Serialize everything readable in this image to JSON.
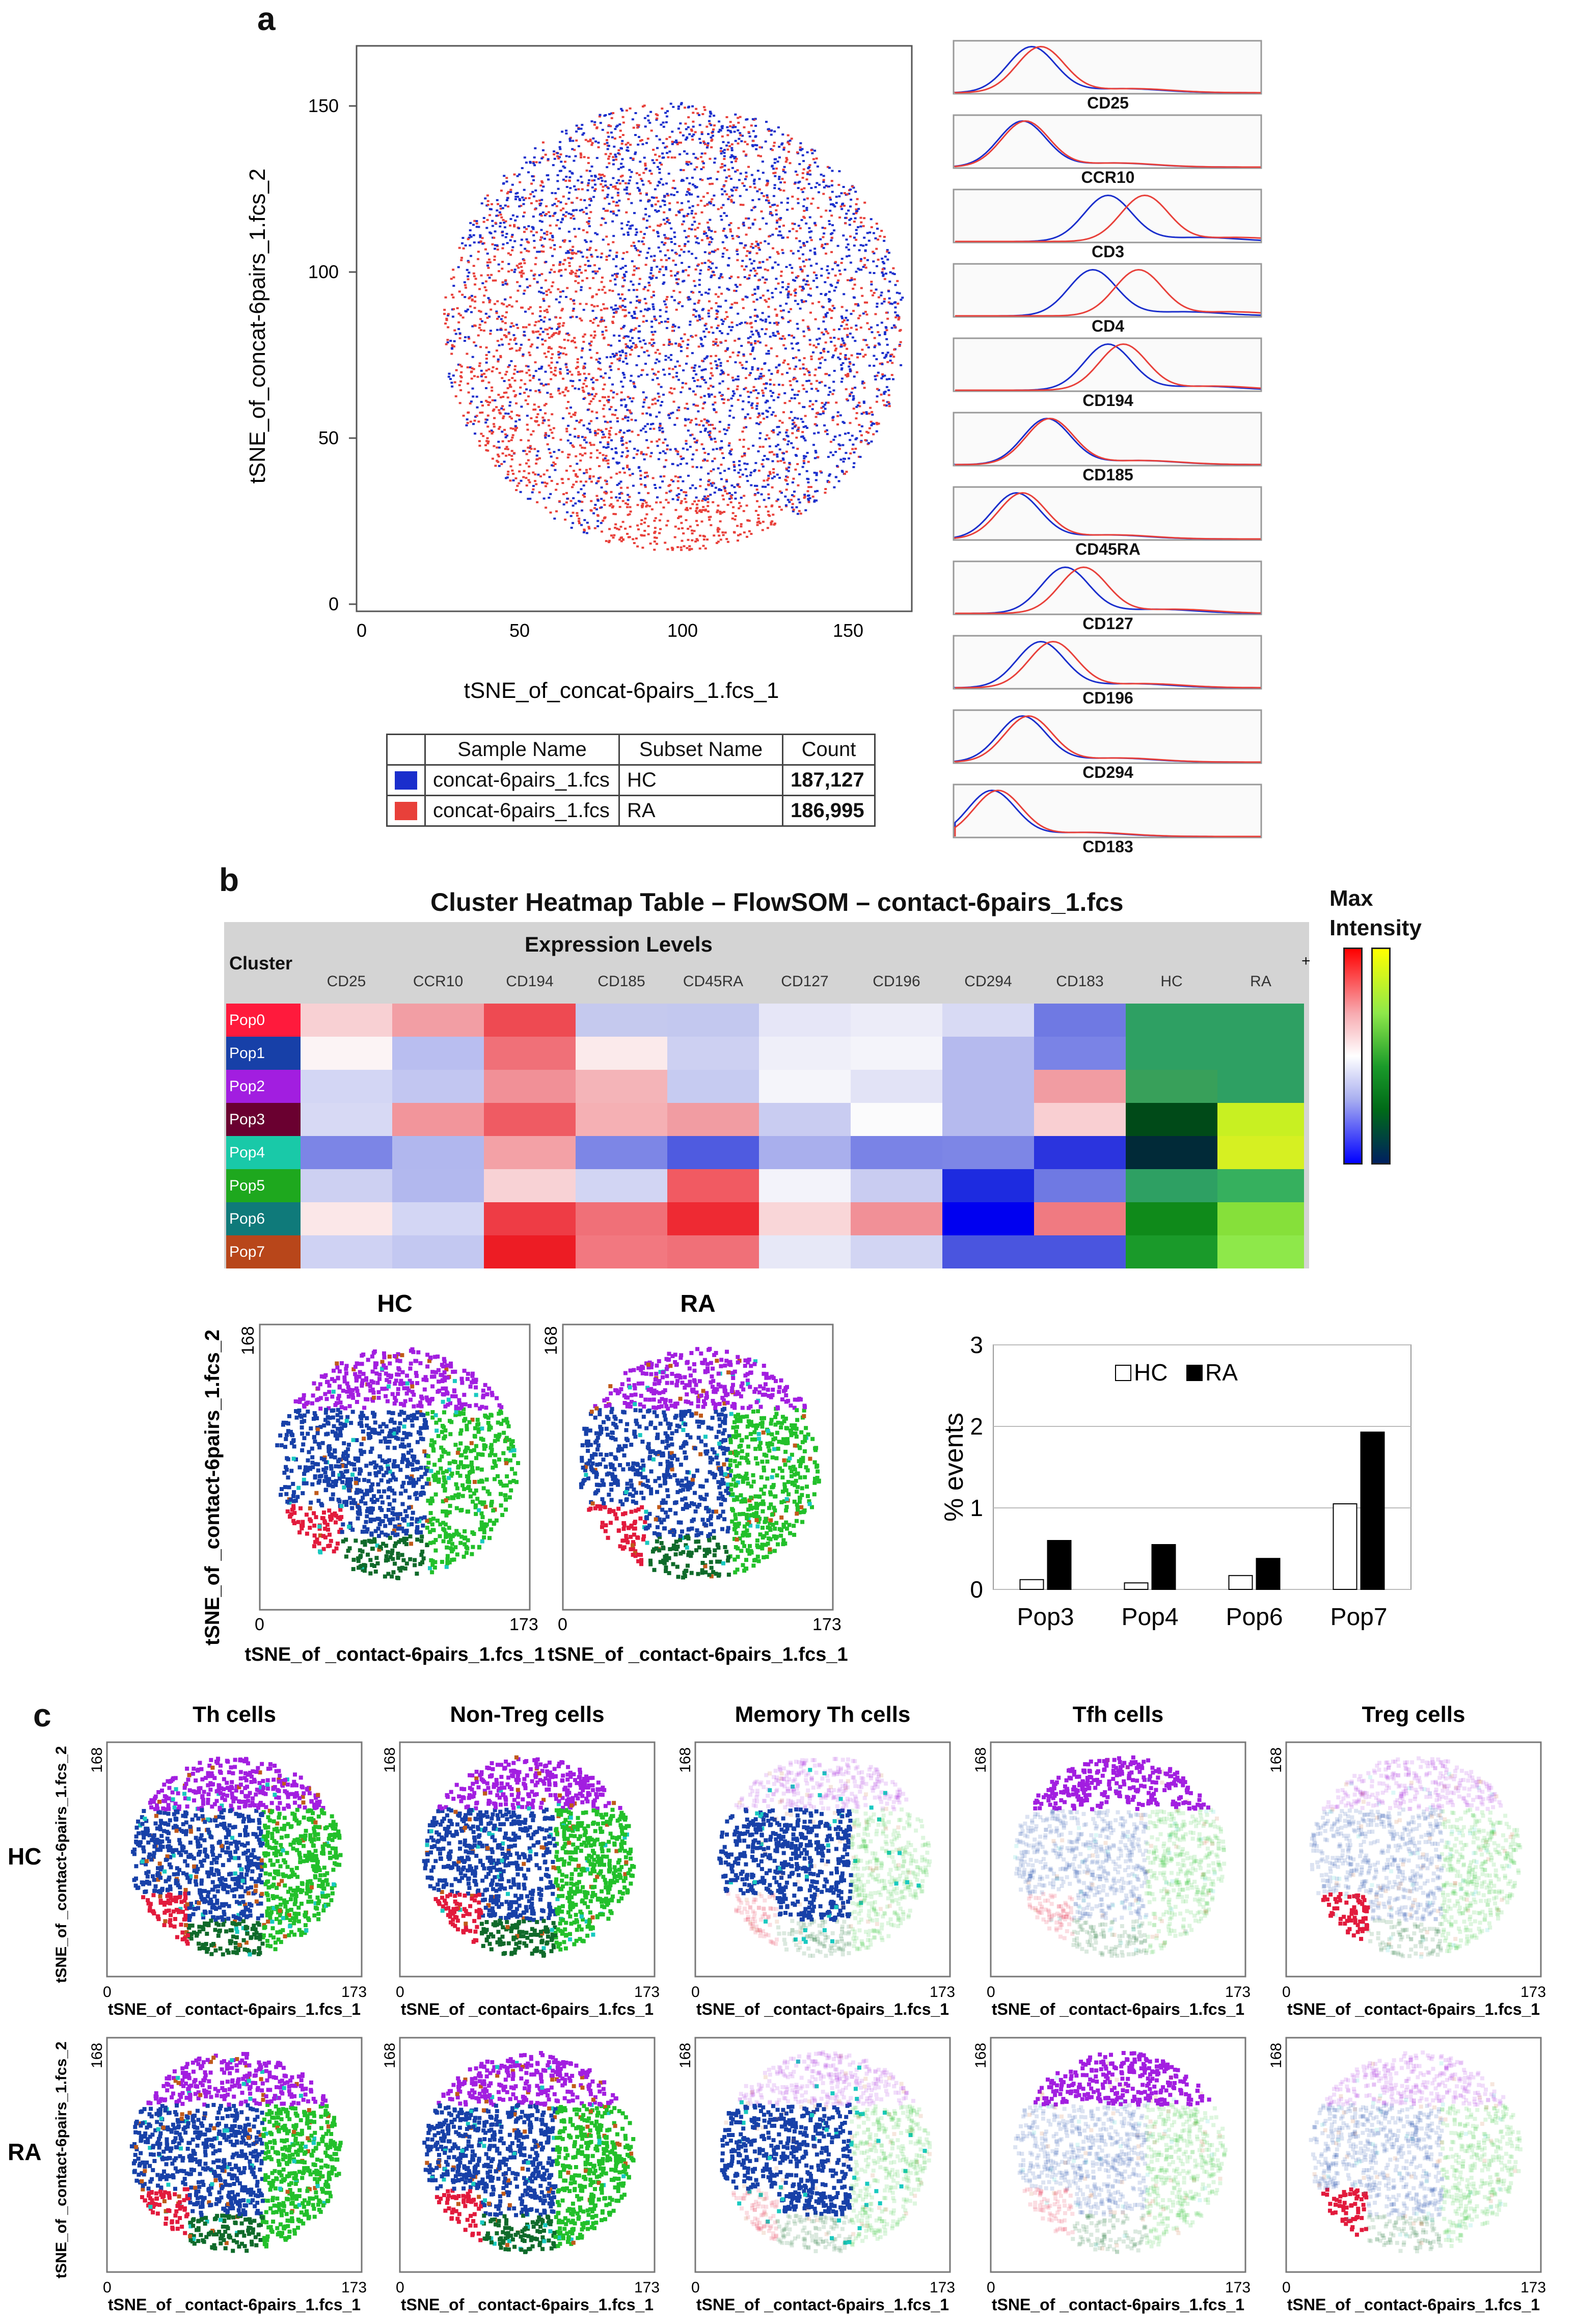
{
  "panel_a": {
    "letter": "a",
    "tsne": {
      "x_label": "tSNE_of_concat-6pairs_1.fcs_1",
      "y_label": "tSNE_of_concat-6pairs_1.fcs_2",
      "x_ticks": [
        "0",
        "50",
        "100",
        "150"
      ],
      "y_ticks": [
        "0",
        "50",
        "100",
        "150"
      ]
    },
    "legend": {
      "headers": [
        "Sample Name",
        "Subset Name",
        "Count"
      ],
      "rows": [
        {
          "color": "#1a2ecc",
          "sample": "concat-6pairs_1.fcs",
          "subset": "HC",
          "count": "187,127"
        },
        {
          "color": "#e8403a",
          "sample": "concat-6pairs_1.fcs",
          "subset": "RA",
          "count": "186,995"
        }
      ]
    },
    "histograms": [
      "CD25",
      "CCR10",
      "CD3",
      "CD4",
      "CD194",
      "CD185",
      "CD45RA",
      "CD127",
      "CD196",
      "CD294",
      "CD183"
    ]
  },
  "panel_b": {
    "letter": "b",
    "heatmap_title": "Cluster Heatmap Table – FlowSOM – contact-6pairs_1.fcs",
    "cluster_header": "Cluster",
    "expression_header": "Expression Levels",
    "plus_button": "+",
    "columns": [
      "CD25",
      "CCR10",
      "CD194",
      "CD185",
      "CD45RA",
      "CD127",
      "CD196",
      "CD294",
      "CD183",
      "HC",
      "RA"
    ],
    "rows": [
      {
        "name": "Pop0",
        "color": "#ff1a3c"
      },
      {
        "name": "Pop1",
        "color": "#1740a8"
      },
      {
        "name": "Pop2",
        "color": "#a21ee0"
      },
      {
        "name": "Pop3",
        "color": "#6a0030"
      },
      {
        "name": "Pop4",
        "color": "#19c9a8"
      },
      {
        "name": "Pop5",
        "color": "#1ea81e"
      },
      {
        "name": "Pop6",
        "color": "#0f7a7a"
      },
      {
        "name": "Pop7",
        "color": "#b8461a"
      }
    ],
    "cells": [
      [
        "#f8d0d3",
        "#f29ea4",
        "#ee4a52",
        "#c5c9ee",
        "#c3c8ef",
        "#e6e6f7",
        "#ececf8",
        "#d8daf4",
        "#6f79e3",
        "#2ea063",
        "#2ea063"
      ],
      [
        "#fcf4f5",
        "#b9bef0",
        "#f07078",
        "#fbeaeb",
        "#cdd0f2",
        "#efeff9",
        "#f4f4fa",
        "#b5baee",
        "#7a83e6",
        "#2ea063",
        "#2ea063"
      ],
      [
        "#d3d6f4",
        "#c2c6f1",
        "#f19097",
        "#f4b4b8",
        "#c6cbf1",
        "#f5f5fa",
        "#e2e3f6",
        "#b5baee",
        "#f19ca2",
        "#38a05a",
        "#2ea063"
      ],
      [
        "#d7d9f4",
        "#f2959b",
        "#ef5b63",
        "#f5b0b4",
        "#f19ca2",
        "#c9ccf1",
        "#fbfbfc",
        "#b5baee",
        "#f9cfd2",
        "#004a18",
        "#c8f022"
      ],
      [
        "#7c85e6",
        "#b1b7ee",
        "#f3a1a6",
        "#7d86e6",
        "#4f5be0",
        "#a9afed",
        "#7a83e6",
        "#7d86e6",
        "#2b34de",
        "#012a38",
        "#d6f022"
      ],
      [
        "#cdd0f2",
        "#b2b8ee",
        "#f8d2d5",
        "#d2d5f3",
        "#f15a62",
        "#f3f3fa",
        "#c9ccf1",
        "#1d2be0",
        "#6f79e3",
        "#2ea063",
        "#36b05e"
      ],
      [
        "#fbe7e8",
        "#d3d6f4",
        "#ee3c45",
        "#f07078",
        "#ee2a33",
        "#f9d6d8",
        "#f19097",
        "#0000f0",
        "#f07a81",
        "#0f8a1a",
        "#86e03a"
      ],
      [
        "#cfd2f3",
        "#c3c8f1",
        "#ed1c24",
        "#f27880",
        "#f07078",
        "#e7e8f7",
        "#d2d5f3",
        "#4a55df",
        "#4a55df",
        "#1a9a2a",
        "#8ee84a"
      ]
    ],
    "colorbar_label": [
      "Max",
      "Intensity"
    ],
    "tsne_hc_title": "HC",
    "tsne_ra_title": "RA",
    "tsne_x_label": "tSNE_of _contact-6pairs_1.fcs_1",
    "tsne_y_label": "tSNE_of _contact-6pairs_1.fcs_2",
    "tsne_ticks": {
      "x0": "0",
      "xmax": "173",
      "y0": "0",
      "ymax": "168"
    }
  },
  "chart_data": {
    "type": "bar",
    "categories": [
      "Pop3",
      "Pop4",
      "Pop6",
      "Pop7"
    ],
    "series": [
      {
        "name": "HC",
        "values": [
          0.12,
          0.08,
          0.17,
          1.05
        ],
        "color": "#ffffff"
      },
      {
        "name": "RA",
        "values": [
          0.6,
          0.55,
          0.38,
          1.93
        ],
        "color": "#000000"
      }
    ],
    "ylabel": "% events",
    "ylim": [
      0,
      3
    ],
    "yticks": [
      "0",
      "1",
      "2",
      "3"
    ],
    "legend": [
      "HC",
      "RA"
    ],
    "grid": true
  },
  "panel_c": {
    "letter": "c",
    "columns": [
      "Th cells",
      "Non-Treg cells",
      "Memory Th cells",
      "Tfh cells",
      "Treg cells"
    ],
    "row_labels": [
      "HC",
      "RA"
    ],
    "x_label": "tSNE_of _contact-6pairs_1.fcs_1",
    "y_label": "tSNE_of _contact-6pairs_1.fcs_2",
    "ticks": {
      "x0": "0",
      "xmax": "173",
      "y0": "0",
      "ymax": "168"
    }
  }
}
